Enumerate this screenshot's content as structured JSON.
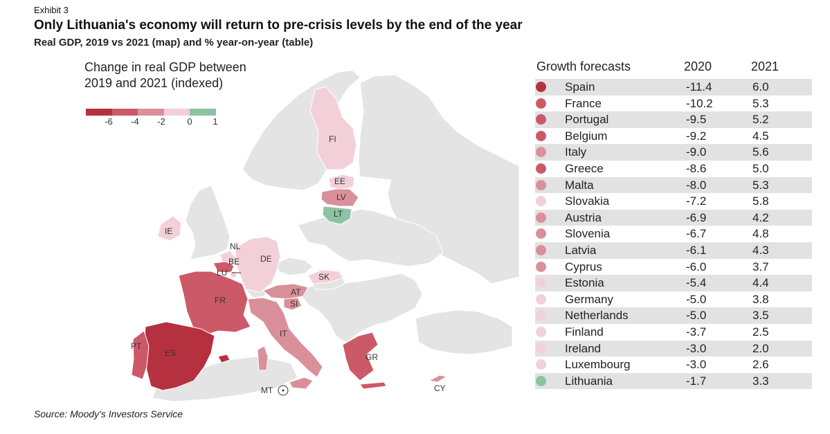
{
  "header": {
    "exhibit": "Exhibit 3",
    "title": "Only Lithuania's economy will return to pre-crisis levels by the end of the year",
    "subtitle": "Real GDP, 2019 vs 2021 (map) and % year-on-year (table)"
  },
  "source": "Source: Moody's Investors Service",
  "legend": {
    "title_line1": "Change in real GDP between",
    "title_line2": "2019 and 2021 (indexed)",
    "colors": [
      "#b5313f",
      "#cc5967",
      "#d9909a",
      "#f3d0d8",
      "#8dc3a3"
    ],
    "ticks": [
      "-6",
      "-4",
      "-2",
      "0",
      "1"
    ]
  },
  "colors": {
    "background_country": "#e4e4e4",
    "shade_row": "#e2e2e2",
    "c_lt": "#8dc3a3"
  },
  "map_labels": {
    "FI": "FI",
    "EE": "EE",
    "LV": "LV",
    "LT": "LT",
    "IE": "IE",
    "NL": "NL",
    "BE": "BE",
    "LU": "LU",
    "DE": "DE",
    "SK": "SK",
    "AT": "AT",
    "SI": "SI",
    "FR": "FR",
    "IT": "IT",
    "PT": "PT",
    "ES": "ES",
    "GR": "GR",
    "MT": "MT",
    "CY": "CY"
  },
  "chart_data": {
    "type": "table",
    "title": "Growth forecasts",
    "columns": [
      "Growth forecasts",
      "2020",
      "2021"
    ],
    "rows": [
      {
        "country": "Spain",
        "y2020": "-11.4",
        "y2021": "6.0",
        "color": "#b5313f"
      },
      {
        "country": "France",
        "y2020": "-10.2",
        "y2021": "5.3",
        "color": "#cc5967"
      },
      {
        "country": "Portugal",
        "y2020": "-9.5",
        "y2021": "5.2",
        "color": "#cc5967"
      },
      {
        "country": "Belgium",
        "y2020": "-9.2",
        "y2021": "4.5",
        "color": "#cc5967"
      },
      {
        "country": "Italy",
        "y2020": "-9.0",
        "y2021": "5.6",
        "color": "#d9909a"
      },
      {
        "country": "Greece",
        "y2020": "-8.6",
        "y2021": "5.0",
        "color": "#cc5967"
      },
      {
        "country": "Malta",
        "y2020": "-8.0",
        "y2021": "5.3",
        "color": "#d9909a"
      },
      {
        "country": "Slovakia",
        "y2020": "-7.2",
        "y2021": "5.8",
        "color": "#f3d0d8"
      },
      {
        "country": "Austria",
        "y2020": "-6.9",
        "y2021": "4.2",
        "color": "#d9909a"
      },
      {
        "country": "Slovenia",
        "y2020": "-6.7",
        "y2021": "4.8",
        "color": "#d9909a"
      },
      {
        "country": "Latvia",
        "y2020": "-6.1",
        "y2021": "4.3",
        "color": "#d9909a"
      },
      {
        "country": "Cyprus",
        "y2020": "-6.0",
        "y2021": "3.7",
        "color": "#d9909a"
      },
      {
        "country": "Estonia",
        "y2020": "-5.4",
        "y2021": "4.4",
        "color": "#f3d0d8"
      },
      {
        "country": "Germany",
        "y2020": "-5.0",
        "y2021": "3.8",
        "color": "#f3d0d8"
      },
      {
        "country": "Netherlands",
        "y2020": "-5.0",
        "y2021": "3.5",
        "color": "#f3d0d8"
      },
      {
        "country": "Finland",
        "y2020": "-3.7",
        "y2021": "2.5",
        "color": "#f3d0d8"
      },
      {
        "country": "Ireland",
        "y2020": "-3.0",
        "y2021": "2.0",
        "color": "#f3d0d8"
      },
      {
        "country": "Luxembourg",
        "y2020": "-3.0",
        "y2021": "2.6",
        "color": "#f3d0d8"
      },
      {
        "country": "Lithuania",
        "y2020": "-1.7",
        "y2021": "3.3",
        "color": "#8dc3a3"
      }
    ]
  }
}
